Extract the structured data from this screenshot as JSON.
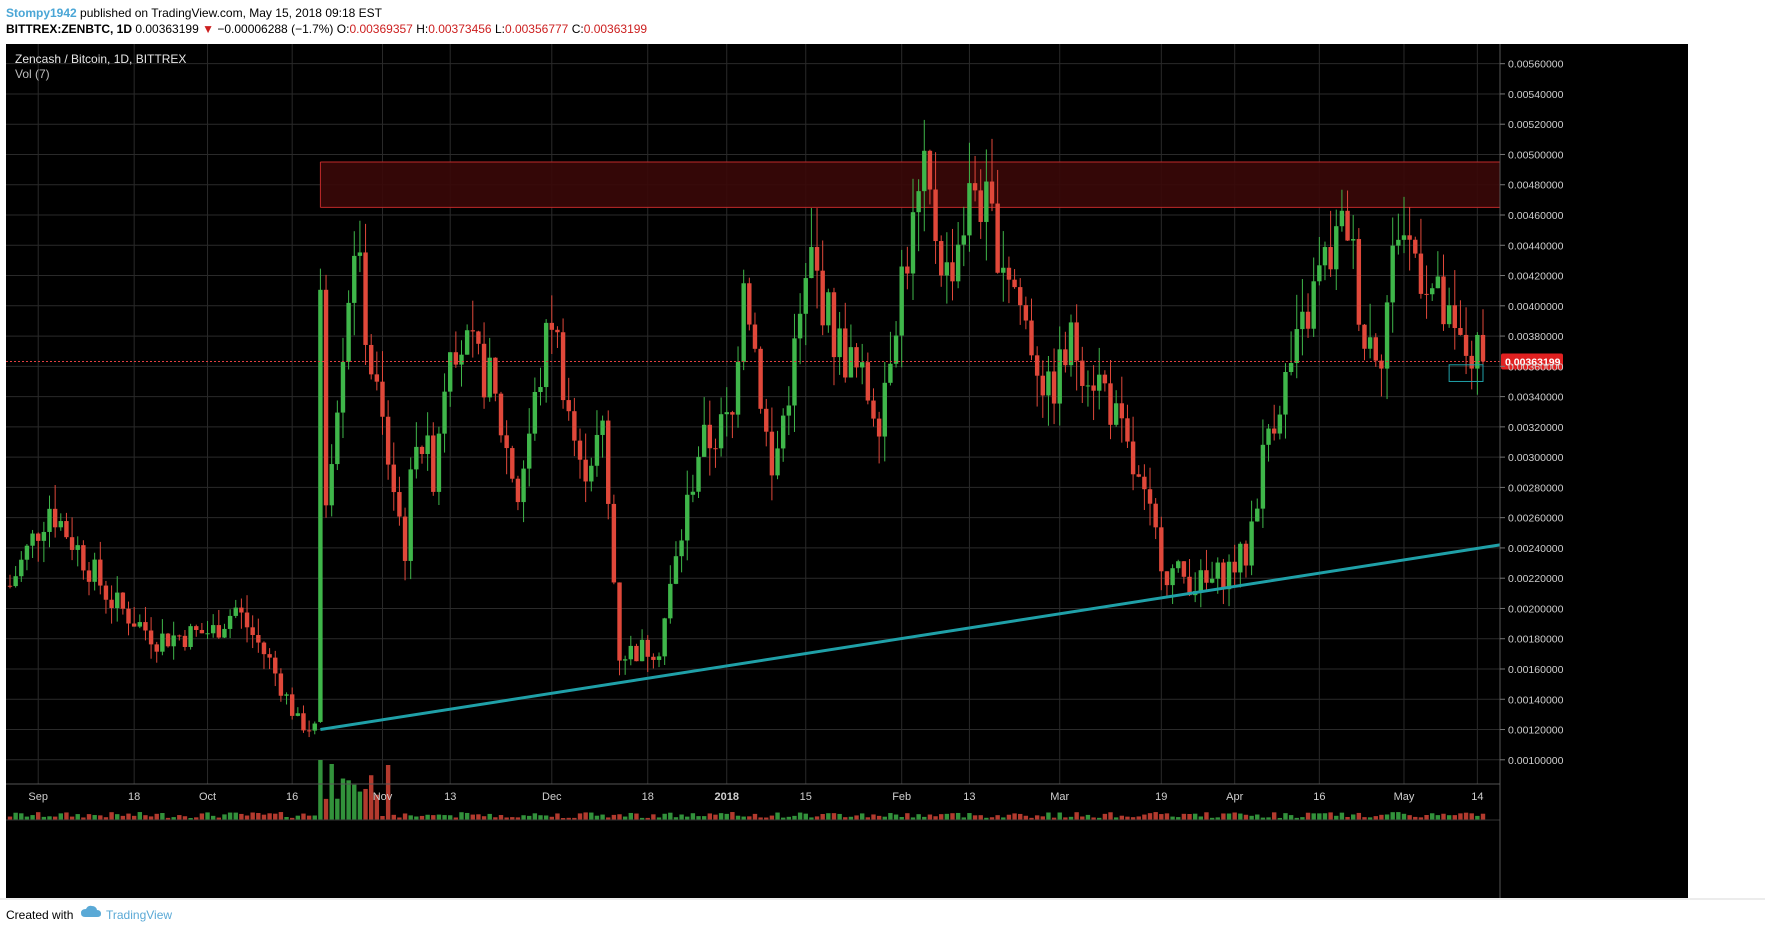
{
  "header": {
    "author": "Stompy1942",
    "published_text": "published on TradingView.com, May 15, 2018 09:18 EST",
    "symbol": "BITTREX:ZENBTC, 1D",
    "last": "0.00363199",
    "change": "−0.00006288 (−1.7%)",
    "open_label": "O:",
    "open": "0.00369357",
    "high_label": "H:",
    "high": "0.00373456",
    "low_label": "L:",
    "low": "0.00356777",
    "close_label": "C:",
    "close": "0.00363199"
  },
  "footer": {
    "created_with": "Created with",
    "brand": "TradingView"
  },
  "colors": {
    "background": "#000000",
    "grid": "#2a2a2a",
    "up": "#3fb64a",
    "down": "#e0483a",
    "trendline": "#1fa0a8",
    "resistance_fill": "#3a0808",
    "resistance_border": "#c02a2a",
    "price_label_bg": "#e02020",
    "axis_text": "#cfcfcf",
    "vol_ma": "#1f6f90"
  },
  "chart_data": {
    "type": "candlestick",
    "title": "Zencash / Bitcoin, 1D, BITTREX",
    "indicator": "Vol (7)",
    "y_axis": {
      "ticks": [
        "0.00560000",
        "0.00540000",
        "0.00520000",
        "0.00500000",
        "0.00480000",
        "0.00460000",
        "0.00440000",
        "0.00420000",
        "0.00400000",
        "0.00380000",
        "0.00360000",
        "0.00340000",
        "0.00320000",
        "0.00300000",
        "0.00280000",
        "0.00260000",
        "0.00240000",
        "0.00220000",
        "0.00200000",
        "0.00180000",
        "0.00160000",
        "0.00140000",
        "0.00120000",
        "0.00100000"
      ],
      "ylim": [
        0.00084,
        0.00573
      ]
    },
    "x_axis": {
      "ticks": [
        "Sep",
        "18",
        "Oct",
        "16",
        "Nov",
        "13",
        "Dec",
        "18",
        "2018",
        "15",
        "Feb",
        "13",
        "Mar",
        "19",
        "Apr",
        "16",
        "May",
        "14"
      ],
      "first_date": "2017-08-27",
      "last_date": "2018-05-15"
    },
    "last_price_label": "0.00363199",
    "last_price": 0.00363199,
    "resistance_zone": {
      "from_date": "2017-10-21",
      "to_date": "2018-05-18",
      "low": 0.00465,
      "high": 0.00495
    },
    "trendline": {
      "start": [
        "2017-10-21",
        0.0012
      ],
      "end": [
        "2018-05-18",
        0.00242
      ]
    },
    "highlight_box": {
      "from_date": "2018-05-09",
      "to_date": "2018-05-15",
      "low": 0.0035,
      "high": 0.00361
    },
    "key_points": [
      [
        "2017-08-27",
        0.00215
      ],
      [
        "2017-09-03",
        0.00268
      ],
      [
        "2017-09-14",
        0.00205
      ],
      [
        "2017-09-22",
        0.0018
      ],
      [
        "2017-10-02",
        0.00185
      ],
      [
        "2017-10-06",
        0.002
      ],
      [
        "2017-10-12",
        0.00165
      ],
      [
        "2017-10-17",
        0.00125
      ],
      [
        "2017-10-20",
        0.0012
      ],
      [
        "2017-10-21",
        0.00395
      ],
      [
        "2017-10-22",
        0.00275
      ],
      [
        "2017-10-27",
        0.00445
      ],
      [
        "2017-10-30",
        0.0036
      ],
      [
        "2017-11-05",
        0.0024
      ],
      [
        "2017-11-07",
        0.0032
      ],
      [
        "2017-11-10",
        0.0029
      ],
      [
        "2017-11-13",
        0.00385
      ],
      [
        "2017-11-20",
        0.0035
      ],
      [
        "2017-11-25",
        0.00275
      ],
      [
        "2017-12-01",
        0.00395
      ],
      [
        "2017-12-06",
        0.0029
      ],
      [
        "2017-12-10",
        0.00315
      ],
      [
        "2017-12-13",
        0.0017
      ],
      [
        "2017-12-20",
        0.00175
      ],
      [
        "2017-12-27",
        0.00305
      ],
      [
        "2018-01-02",
        0.00325
      ],
      [
        "2018-01-04",
        0.0043
      ],
      [
        "2018-01-09",
        0.00285
      ],
      [
        "2018-01-16",
        0.0043
      ],
      [
        "2018-01-20",
        0.0038
      ],
      [
        "2018-01-28",
        0.0033
      ],
      [
        "2018-02-01",
        0.0042
      ],
      [
        "2018-02-05",
        0.0048
      ],
      [
        "2018-02-09",
        0.0042
      ],
      [
        "2018-02-14",
        0.0048
      ],
      [
        "2018-02-20",
        0.00425
      ],
      [
        "2018-02-27",
        0.0034
      ],
      [
        "2018-03-03",
        0.00375
      ],
      [
        "2018-03-09",
        0.00345
      ],
      [
        "2018-03-15",
        0.0028
      ],
      [
        "2018-03-20",
        0.00225
      ],
      [
        "2018-03-27",
        0.00215
      ],
      [
        "2018-04-03",
        0.00235
      ],
      [
        "2018-04-07",
        0.0032
      ],
      [
        "2018-04-12",
        0.0037
      ],
      [
        "2018-04-16",
        0.0042
      ],
      [
        "2018-04-21",
        0.00455
      ],
      [
        "2018-04-24",
        0.0038
      ],
      [
        "2018-04-27",
        0.00375
      ],
      [
        "2018-04-30",
        0.00455
      ],
      [
        "2018-05-05",
        0.0042
      ],
      [
        "2018-05-10",
        0.00375
      ],
      [
        "2018-05-15",
        0.00363
      ]
    ]
  }
}
